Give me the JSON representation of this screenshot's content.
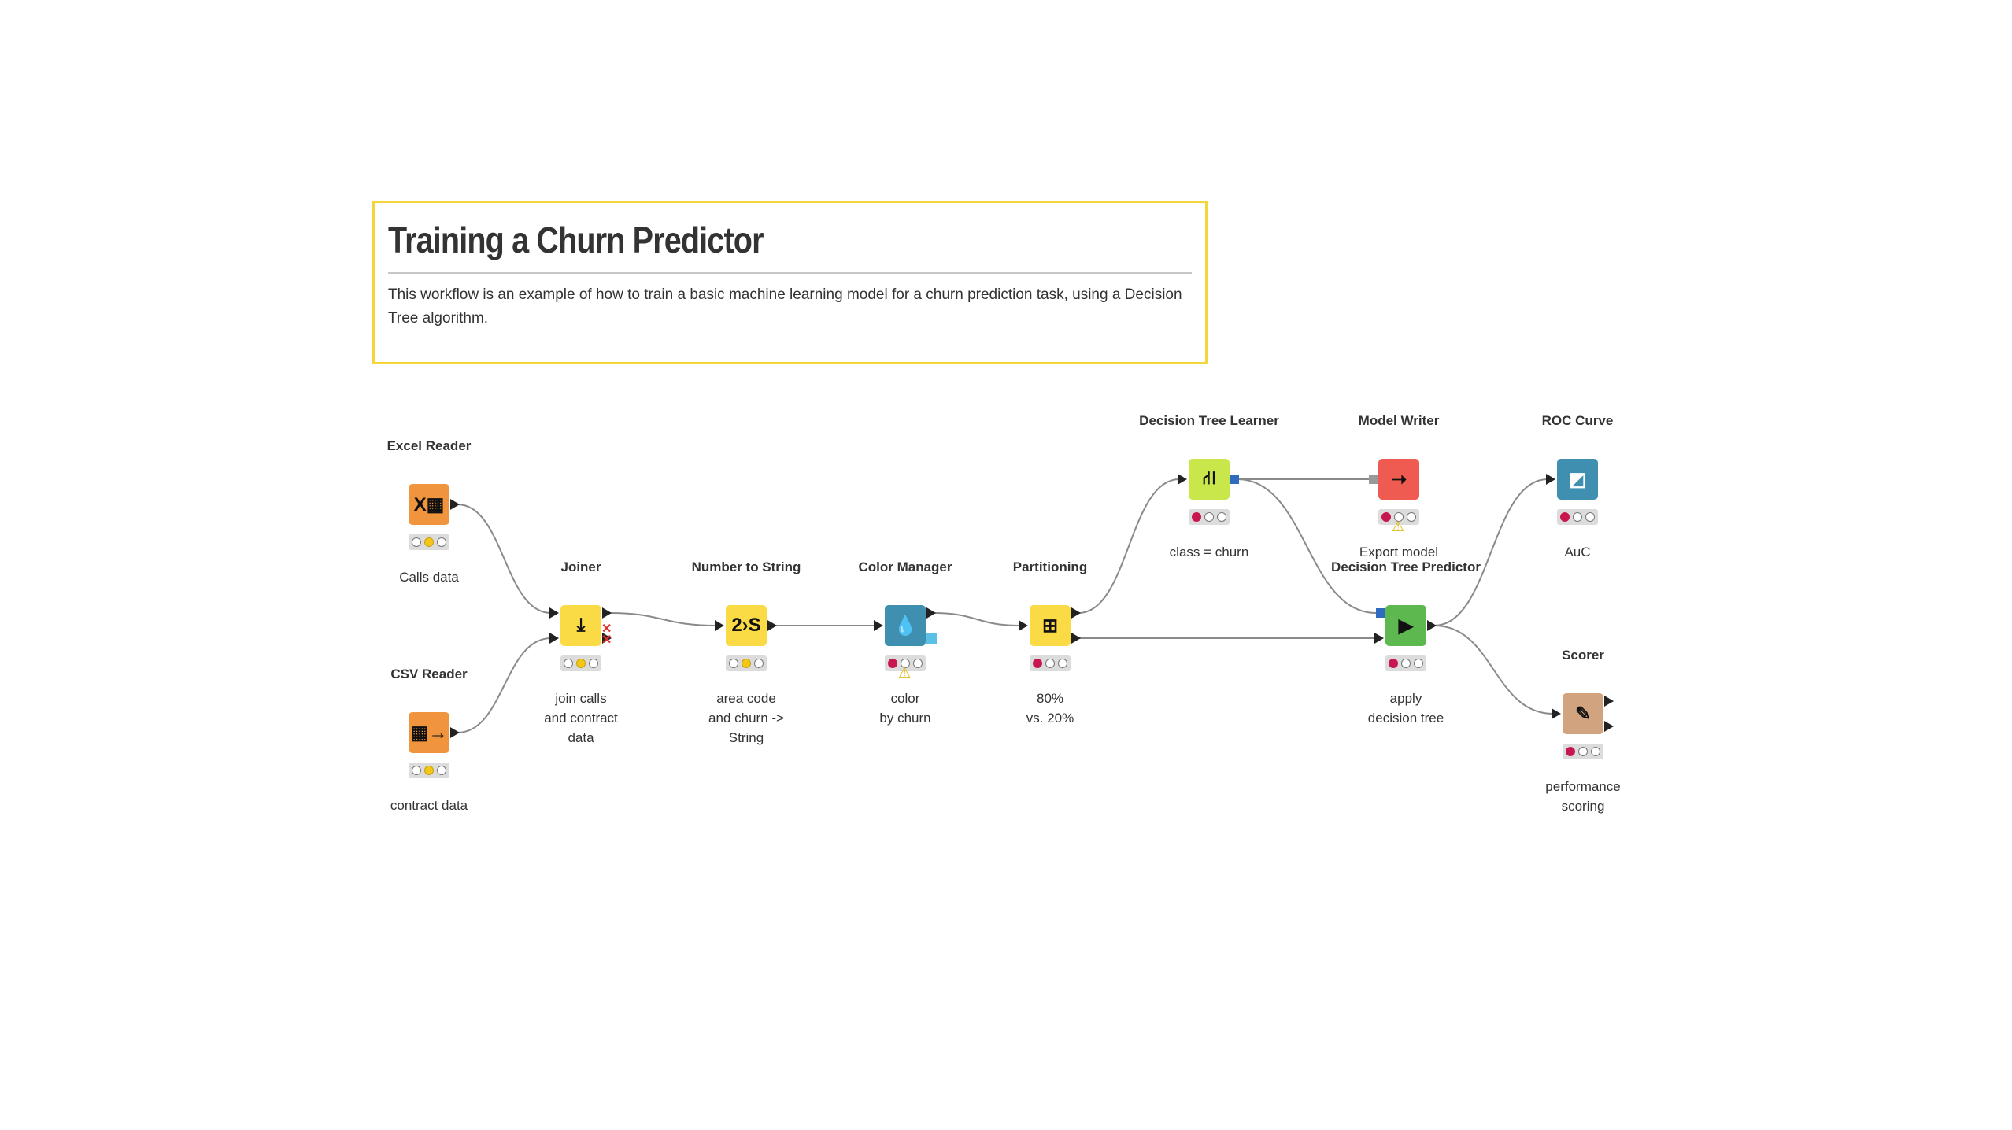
{
  "annotation": {
    "title": "Training a Churn Predictor",
    "text": "This workflow is an example of how to train a basic machine learning model for a churn prediction task, using a Decision Tree algorithm.",
    "border_color": "#f5d63a"
  },
  "nodes": [
    {
      "id": "excel",
      "name": "Excel Reader",
      "desc": "Calls data",
      "color": "#f0953d",
      "icon": "excel-table-icon",
      "glyph": "X▦",
      "status": "yellow",
      "warning": false
    },
    {
      "id": "csv",
      "name": "CSV Reader",
      "desc": "contract data",
      "color": "#f0953d",
      "icon": "csv-table-icon",
      "glyph": "▦→",
      "status": "yellow",
      "warning": false
    },
    {
      "id": "joiner",
      "name": "Joiner",
      "desc": "join calls\nand contract\ndata",
      "color": "#fbdb45",
      "icon": "join-icon",
      "glyph": "⤓",
      "status": "yellow",
      "warning": false
    },
    {
      "id": "num2str",
      "name": "Number to String",
      "desc": "area code\nand churn ->\nString",
      "color": "#fbdb45",
      "icon": "number-to-string-icon",
      "glyph": "2›S",
      "status": "yellow",
      "warning": false
    },
    {
      "id": "colormgr",
      "name": "Color Manager",
      "desc": "color\nby churn",
      "color": "#3e8fb0",
      "icon": "color-drop-icon",
      "glyph": "💧",
      "status": "red",
      "warning": true
    },
    {
      "id": "partition",
      "name": "Partitioning",
      "desc": "80%\nvs. 20%",
      "color": "#fbdb45",
      "icon": "partition-grid-icon",
      "glyph": "⊞",
      "status": "red",
      "warning": false
    },
    {
      "id": "dtl",
      "name": "Decision Tree Learner",
      "desc": "class = churn",
      "color": "#c9e64b",
      "icon": "decision-tree-icon",
      "glyph": "⛙",
      "status": "red",
      "warning": false
    },
    {
      "id": "writer",
      "name": "Model Writer",
      "desc": "Export model",
      "color": "#ef5b50",
      "icon": "model-write-icon",
      "glyph": "➝",
      "status": "red",
      "warning": true
    },
    {
      "id": "roc",
      "name": "ROC Curve",
      "desc": "AuC",
      "color": "#3e8fb0",
      "icon": "roc-curve-icon",
      "glyph": "◩",
      "status": "red",
      "warning": false
    },
    {
      "id": "dtp",
      "name": "Decision Tree Predictor",
      "desc": "apply\ndecision tree",
      "color": "#5cb84f",
      "icon": "predictor-icon",
      "glyph": "▶",
      "status": "red",
      "warning": false
    },
    {
      "id": "scorer",
      "name": "Scorer",
      "desc": "performance\nscoring",
      "color": "#d1a47f",
      "icon": "scorer-icon",
      "glyph": "✎",
      "status": "red",
      "warning": false
    }
  ]
}
